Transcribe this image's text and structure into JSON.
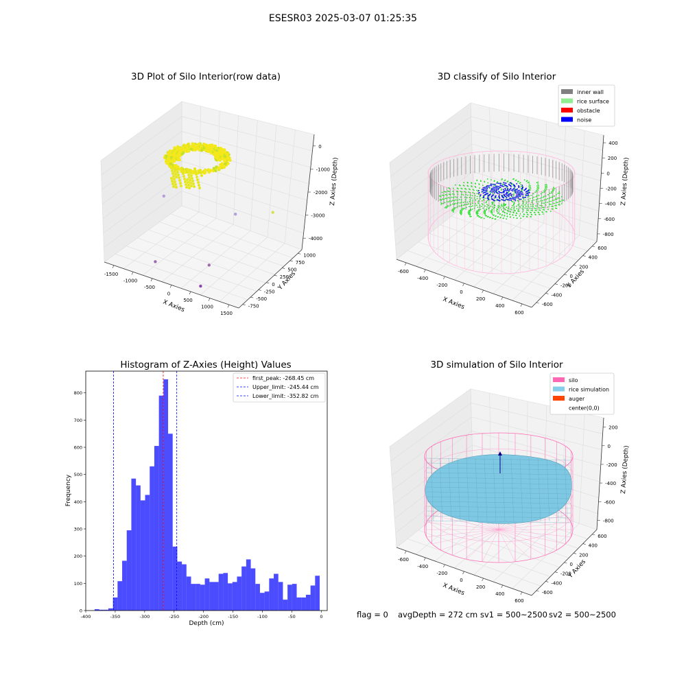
{
  "suptitle": "ESESR03 2025-03-07 01:25:35",
  "footer": {
    "flag": "flag = 0",
    "avg_depth": "avgDepth = 272 cm",
    "sv1": "sv1 = 500~2500",
    "sv2": "sv2 = 500~2500"
  },
  "chart_data": [
    {
      "type": "scatter",
      "projection": "3d",
      "title": "3D Plot of Silo Interior(row data)",
      "xlabel": "X Axies",
      "ylabel": "Y Axies",
      "zlabel": "Z Axies (Depth)",
      "x_ticks": [
        "-1500",
        "-1000",
        "-500",
        "0",
        "500",
        "1000",
        "1500"
      ],
      "y_ticks": [
        "-750",
        "-500",
        "-250",
        "0",
        "250",
        "500",
        "750",
        "1000"
      ],
      "z_ticks": [
        "0",
        "-1000",
        "-2000",
        "-3000",
        "-4000"
      ],
      "xlim": [
        -1700,
        1700
      ],
      "ylim": [
        -800,
        1100
      ],
      "zlim": [
        -4400,
        200
      ],
      "colormap": "viridis",
      "note_points": [
        {
          "x": -1300,
          "y": 300,
          "z": -2700,
          "color": "#b39ddb"
        },
        {
          "x": 100,
          "y": 800,
          "z": -3400,
          "color": "#b39ddb"
        },
        {
          "x": 1000,
          "y": 900,
          "z": -3000,
          "color": "#d4e157"
        },
        {
          "x": -600,
          "y": -600,
          "z": -4000,
          "color": "#9c6ab0"
        },
        {
          "x": 400,
          "y": -200,
          "z": -4100,
          "color": "#9c6ab0"
        },
        {
          "x": 600,
          "y": -650,
          "z": -4300,
          "color": "#8e44ad"
        }
      ]
    },
    {
      "type": "scatter",
      "projection": "3d",
      "title": "3D classify of Silo Interior",
      "xlabel": "X Axies",
      "ylabel": "Y Axies",
      "zlabel": "Z Axies (Depth)",
      "x_ticks": [
        "-600",
        "-400",
        "-200",
        "0",
        "200",
        "400",
        "600"
      ],
      "y_ticks": [
        "-600",
        "-400",
        "-200",
        "0",
        "200",
        "400",
        "600"
      ],
      "z_ticks": [
        "400",
        "200",
        "0",
        "-200",
        "-400",
        "-600",
        "-800"
      ],
      "legend": [
        {
          "label": "inner wall",
          "color": "#808080"
        },
        {
          "label": "rice surface",
          "color": "#90ee90"
        },
        {
          "label": "obstacle",
          "color": "#ff0000"
        },
        {
          "label": "noise",
          "color": "#0000ff"
        }
      ],
      "legend_position": "upper right",
      "silo_radius": 600,
      "silo_top": 0,
      "silo_bottom": -800
    },
    {
      "type": "bar",
      "subtype": "histogram",
      "title": "Histogram of Z-Axies (Height) Values",
      "xlabel": "Depth (cm)",
      "ylabel": "Frequency",
      "xlim": [
        -400,
        10
      ],
      "ylim": [
        0,
        880
      ],
      "x_ticks": [
        -400,
        -350,
        -300,
        -250,
        -200,
        -150,
        -100,
        -50,
        0
      ],
      "y_ticks": [
        0,
        100,
        200,
        300,
        400,
        500,
        600,
        700,
        800
      ],
      "bin_start": -385,
      "bin_width": 7.8,
      "values": [
        5,
        3,
        3,
        8,
        48,
        108,
        183,
        295,
        485,
        460,
        405,
        425,
        530,
        605,
        790,
        850,
        650,
        235,
        180,
        170,
        125,
        98,
        98,
        95,
        118,
        105,
        105,
        135,
        138,
        100,
        105,
        125,
        162,
        188,
        155,
        98,
        65,
        70,
        118,
        135,
        105,
        40,
        95,
        98,
        48,
        48,
        58,
        92,
        128
      ],
      "color": "#0000ff",
      "vlines": [
        {
          "label": "first_peak: -268.45 cm",
          "x": -268.45,
          "color": "#ff0000"
        },
        {
          "label": "Upper_limit: -245.44 cm",
          "x": -245.44,
          "color": "#0000ff"
        },
        {
          "label": "Lower_limit: -352.82 cm",
          "x": -352.82,
          "color": "#0000ff"
        }
      ],
      "legend_position": "upper right"
    },
    {
      "type": "surface",
      "projection": "3d",
      "title": "3D simulation of Silo Interior",
      "xlabel": "X Axies",
      "ylabel": "Y Axies",
      "zlabel": "Z Axies (Depth)",
      "x_ticks": [
        "-600",
        "-400",
        "-200",
        "0",
        "200",
        "400",
        "600"
      ],
      "y_ticks": [
        "-600",
        "-400",
        "-200",
        "0",
        "200",
        "400",
        "600"
      ],
      "z_ticks": [
        "200",
        "0",
        "-200",
        "-400",
        "-600",
        "-800"
      ],
      "legend": [
        {
          "label": "silo",
          "color": "#ff69b4"
        },
        {
          "label": "rice simulation",
          "color": "#87ceeb"
        },
        {
          "label": "auger",
          "color": "#ff4500"
        },
        {
          "label": "center(0,0)",
          "color": ""
        }
      ],
      "legend_position": "upper right",
      "silo_radius": 600,
      "surface_depth": -272
    }
  ]
}
